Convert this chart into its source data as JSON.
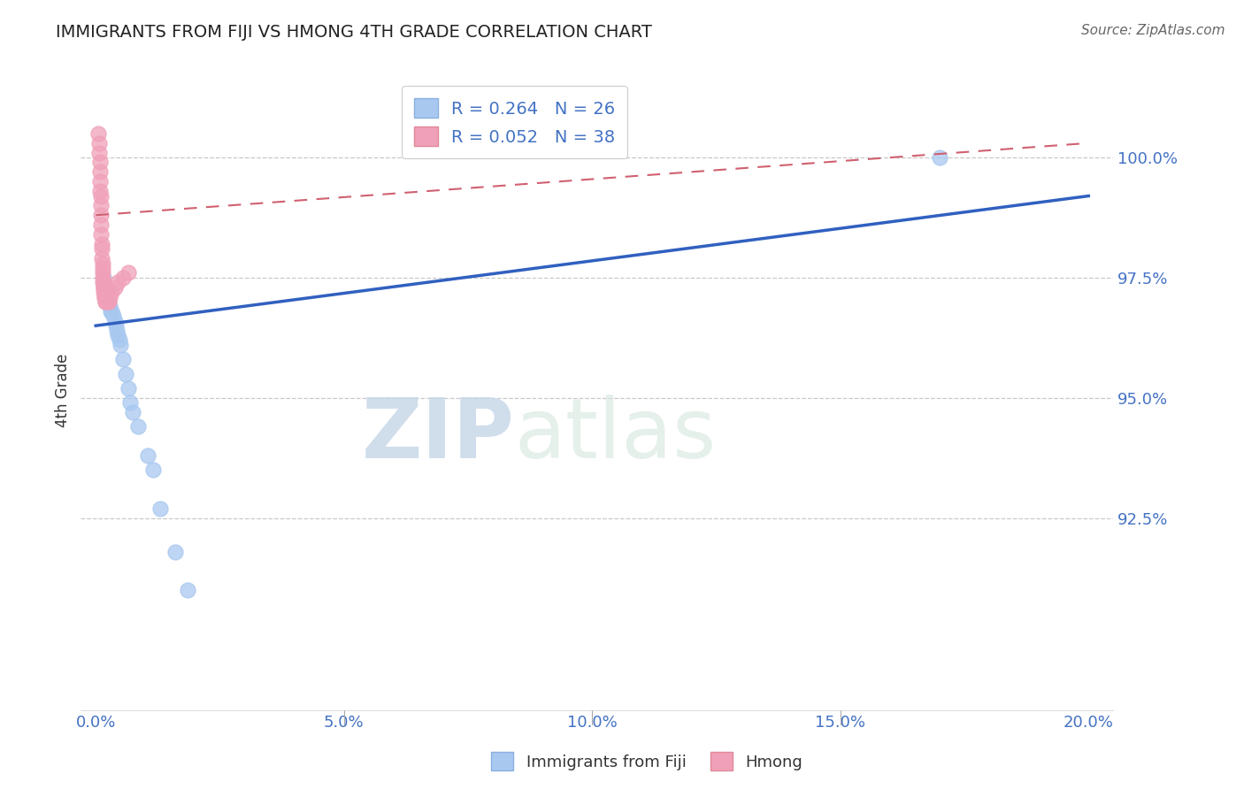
{
  "title": "IMMIGRANTS FROM FIJI VS HMONG 4TH GRADE CORRELATION CHART",
  "source": "Source: ZipAtlas.com",
  "xlabel_tick_vals": [
    0.0,
    5.0,
    10.0,
    15.0,
    20.0
  ],
  "ylabel_tick_vals": [
    92.5,
    95.0,
    97.5,
    100.0
  ],
  "ylabel_label": "4th Grade",
  "xlim": [
    -0.3,
    20.5
  ],
  "ylim": [
    88.5,
    101.8
  ],
  "fiji_R": 0.264,
  "fiji_N": 26,
  "hmong_R": 0.052,
  "hmong_N": 38,
  "fiji_color": "#a8c8f0",
  "hmong_color": "#f0a0b8",
  "fiji_line_color": "#3060c0",
  "hmong_line_color": "#d06070",
  "fiji_points_x": [
    0.15,
    0.2,
    0.22,
    0.25,
    0.28,
    0.3,
    0.32,
    0.35,
    0.38,
    0.4,
    0.42,
    0.45,
    0.48,
    0.5,
    0.55,
    0.6,
    0.65,
    0.7,
    0.75,
    0.85,
    1.05,
    1.15,
    1.3,
    1.6,
    1.85,
    17.0
  ],
  "fiji_points_y": [
    97.5,
    97.3,
    97.2,
    97.0,
    96.9,
    96.8,
    96.8,
    96.7,
    96.6,
    96.5,
    96.4,
    96.3,
    96.2,
    96.1,
    95.8,
    95.5,
    95.2,
    94.9,
    94.7,
    94.4,
    93.8,
    93.5,
    92.7,
    91.8,
    91.0,
    100.0
  ],
  "hmong_points_x": [
    0.05,
    0.06,
    0.07,
    0.08,
    0.08,
    0.09,
    0.09,
    0.1,
    0.1,
    0.1,
    0.11,
    0.11,
    0.12,
    0.12,
    0.12,
    0.13,
    0.13,
    0.13,
    0.14,
    0.14,
    0.15,
    0.15,
    0.15,
    0.16,
    0.17,
    0.18,
    0.18,
    0.19,
    0.2,
    0.22,
    0.24,
    0.26,
    0.28,
    0.32,
    0.38,
    0.45,
    0.55,
    0.65
  ],
  "hmong_points_y": [
    100.5,
    100.3,
    100.1,
    99.9,
    99.7,
    99.5,
    99.3,
    99.2,
    99.0,
    98.8,
    98.6,
    98.4,
    98.2,
    98.1,
    97.9,
    97.8,
    97.7,
    97.6,
    97.5,
    97.4,
    97.4,
    97.3,
    97.3,
    97.2,
    97.2,
    97.1,
    97.1,
    97.0,
    97.0,
    97.0,
    97.0,
    97.0,
    97.1,
    97.2,
    97.3,
    97.4,
    97.5,
    97.6
  ],
  "fiji_trend_x0": 0.0,
  "fiji_trend_y0": 96.5,
  "fiji_trend_x1": 20.0,
  "fiji_trend_y1": 99.2,
  "hmong_trend_x0": 0.0,
  "hmong_trend_y0": 98.8,
  "hmong_trend_x1": 20.0,
  "hmong_trend_y1": 100.3,
  "watermark_zip": "ZIP",
  "watermark_atlas": "atlas",
  "background_color": "#ffffff",
  "grid_color": "#c8c8c8",
  "tick_color": "#4472c4",
  "title_color": "#222222",
  "source_color": "#666666",
  "ylabel_color": "#333333"
}
